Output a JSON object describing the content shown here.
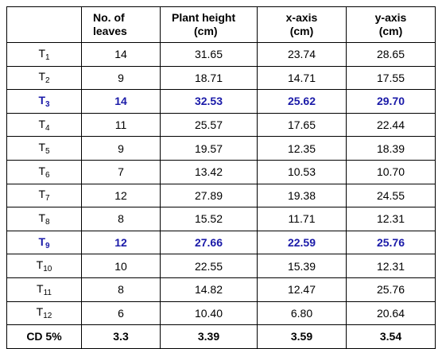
{
  "headers": [
    {
      "line1": "",
      "line2": ""
    },
    {
      "line1": "No. of",
      "line2": "leaves"
    },
    {
      "line1": "Plant height",
      "line2": "(cm)"
    },
    {
      "line1": "x-axis",
      "line2": "(cm)"
    },
    {
      "line1": "y-axis",
      "line2": "(cm)"
    }
  ],
  "colors": {
    "highlight": "#1a1aa8"
  },
  "rows": [
    {
      "prefix": "T",
      "sub": "1",
      "leaves": "14",
      "height": "31.65",
      "x": "23.74",
      "y": "28.65",
      "highlight": false
    },
    {
      "prefix": "T",
      "sub": "2",
      "leaves": "9",
      "height": "18.71",
      "x": "14.71",
      "y": "17.55",
      "highlight": false
    },
    {
      "prefix": "T",
      "sub": "3",
      "leaves": "14",
      "height": "32.53",
      "x": "25.62",
      "y": "29.70",
      "highlight": true
    },
    {
      "prefix": "T",
      "sub": "4",
      "leaves": "11",
      "height": "25.57",
      "x": "17.65",
      "y": "22.44",
      "highlight": false
    },
    {
      "prefix": "T",
      "sub": "5",
      "leaves": "9",
      "height": "19.57",
      "x": "12.35",
      "y": "18.39",
      "highlight": false
    },
    {
      "prefix": "T",
      "sub": "6",
      "leaves": "7",
      "height": "13.42",
      "x": "10.53",
      "y": "10.70",
      "highlight": false
    },
    {
      "prefix": "T",
      "sub": "7",
      "leaves": "12",
      "height": "27.89",
      "x": "19.38",
      "y": "24.55",
      "highlight": false
    },
    {
      "prefix": "T",
      "sub": "8",
      "leaves": "8",
      "height": "15.52",
      "x": "11.71",
      "y": "12.31",
      "highlight": false
    },
    {
      "prefix": "T",
      "sub": "9",
      "leaves": "12",
      "height": "27.66",
      "x": "22.59",
      "y": "25.76",
      "highlight": true
    },
    {
      "prefix": "T",
      "sub": "10",
      "leaves": "10",
      "height": "22.55",
      "x": "15.39",
      "y": "12.31",
      "highlight": false
    },
    {
      "prefix": "T",
      "sub": "11",
      "leaves": "8",
      "height": "14.82",
      "x": "12.47",
      "y": "25.76",
      "highlight": false
    },
    {
      "prefix": "T",
      "sub": "12",
      "leaves": "6",
      "height": "10.40",
      "x": "6.80",
      "y": "20.64",
      "highlight": false
    }
  ],
  "cd_row": {
    "label": "CD 5%",
    "leaves": "3.3",
    "height": "3.39",
    "x": "3.59",
    "y": "3.54"
  }
}
